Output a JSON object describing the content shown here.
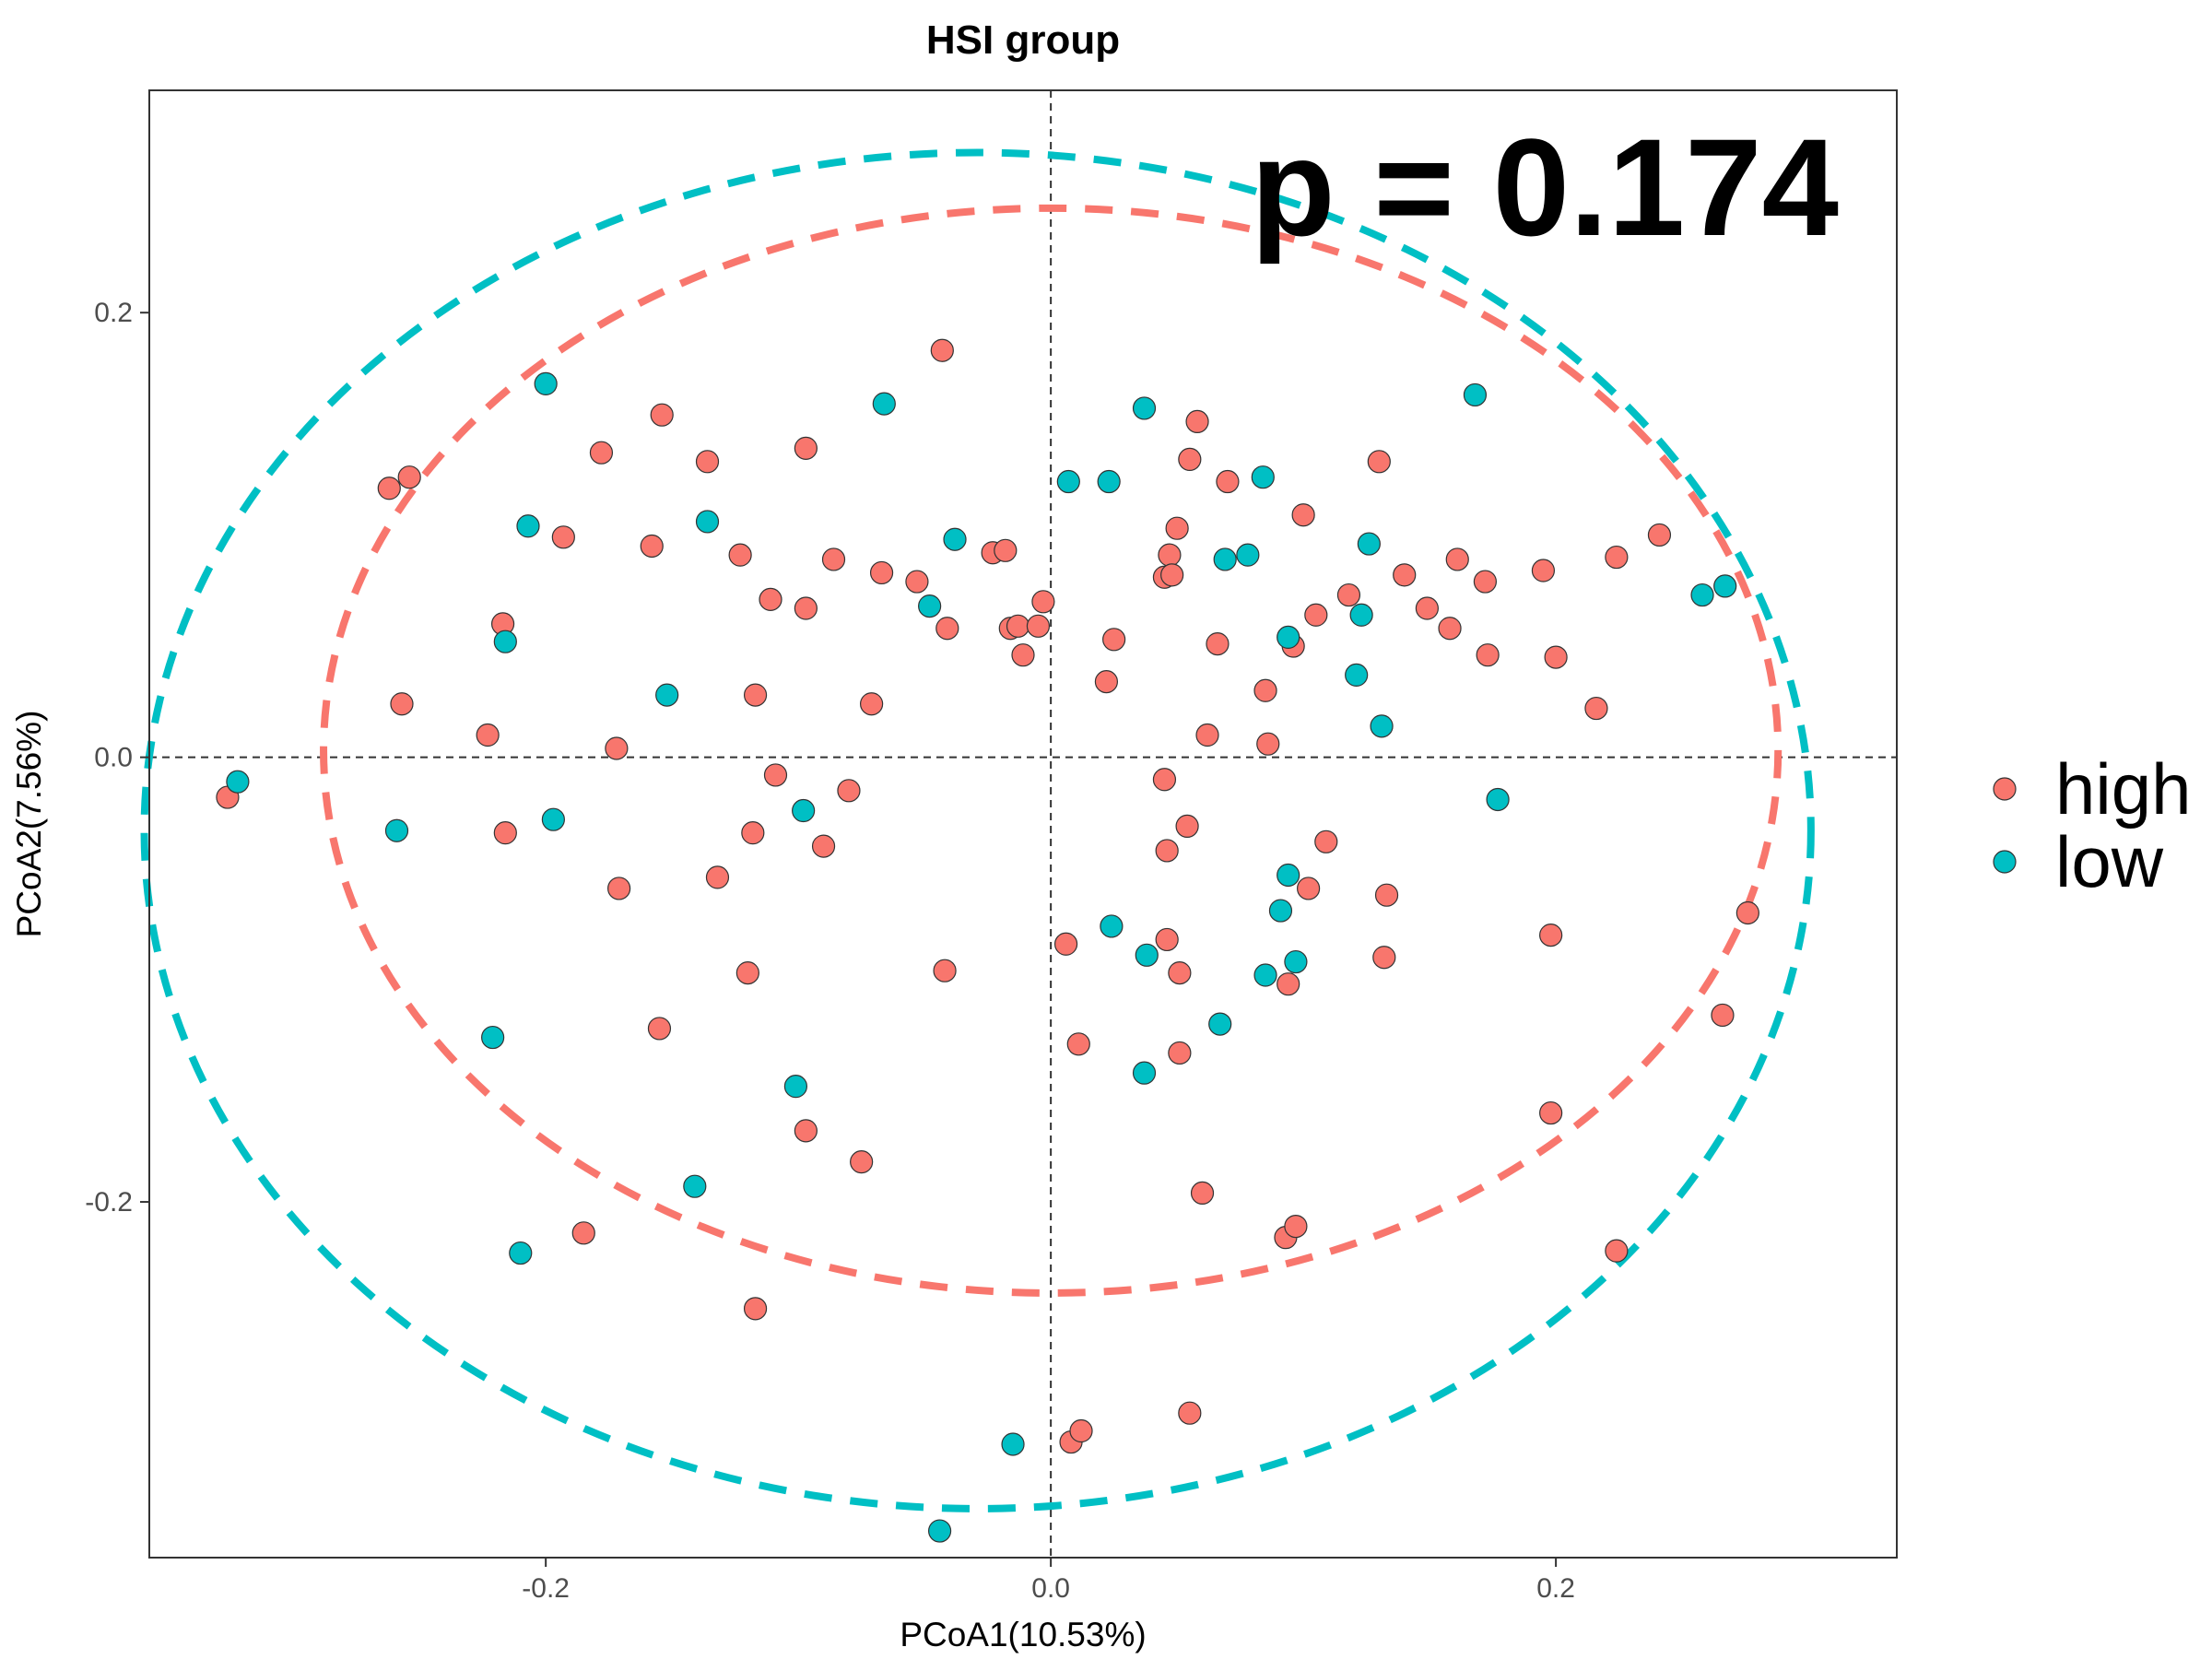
{
  "chart_data": {
    "type": "scatter",
    "title": "HSI group",
    "xlabel": "PCoA1(10.53%)",
    "ylabel": "PCoA2(7.56%)",
    "annotation": "p = 0.174",
    "xlim": [
      -0.357,
      0.335
    ],
    "ylim": [
      -0.36,
      0.3
    ],
    "xticks": [
      -0.2,
      0.0,
      0.2
    ],
    "xtick_labels": [
      "-0.2",
      "0.0",
      "0.2"
    ],
    "yticks": [
      -0.2,
      0.0,
      0.2
    ],
    "ytick_labels": [
      "-0.2",
      "0.0",
      "0.2"
    ],
    "reference_lines": {
      "x": 0,
      "y": 0
    },
    "grid": false,
    "legend_position": "right",
    "series": [
      {
        "name": "high",
        "color": "#F8766D",
        "ellipse": {
          "cx": 0.0,
          "cy": 0.003,
          "rx": 0.288,
          "ry": 0.244
        },
        "points": [
          [
            -0.326,
            -0.018
          ],
          [
            -0.262,
            0.121
          ],
          [
            -0.254,
            0.126
          ],
          [
            -0.257,
            0.024
          ],
          [
            -0.223,
            0.01
          ],
          [
            -0.217,
            0.06
          ],
          [
            -0.216,
            -0.034
          ],
          [
            -0.193,
            0.099
          ],
          [
            -0.178,
            0.137
          ],
          [
            -0.172,
            0.004
          ],
          [
            -0.171,
            -0.059
          ],
          [
            -0.158,
            0.095
          ],
          [
            -0.154,
            0.154
          ],
          [
            -0.155,
            -0.122
          ],
          [
            -0.136,
            0.133
          ],
          [
            -0.132,
            -0.054
          ],
          [
            -0.123,
            0.091
          ],
          [
            -0.12,
            -0.097
          ],
          [
            -0.118,
            -0.034
          ],
          [
            -0.117,
            0.028
          ],
          [
            -0.111,
            0.071
          ],
          [
            -0.109,
            -0.008
          ],
          [
            -0.097,
            0.139
          ],
          [
            -0.097,
            0.067
          ],
          [
            -0.097,
            -0.168
          ],
          [
            -0.09,
            -0.04
          ],
          [
            -0.086,
            0.089
          ],
          [
            -0.08,
            -0.015
          ],
          [
            -0.075,
            -0.182
          ],
          [
            -0.071,
            0.024
          ],
          [
            -0.067,
            0.083
          ],
          [
            -0.053,
            0.079
          ],
          [
            -0.043,
            0.183
          ],
          [
            -0.041,
            0.058
          ],
          [
            -0.042,
            -0.096
          ],
          [
            -0.023,
            0.092
          ],
          [
            -0.018,
            0.093
          ],
          [
            -0.016,
            0.058
          ],
          [
            -0.013,
            0.059
          ],
          [
            -0.011,
            0.046
          ],
          [
            -0.005,
            0.059
          ],
          [
            -0.003,
            0.07
          ],
          [
            0.006,
            -0.084
          ],
          [
            0.011,
            -0.129
          ],
          [
            0.022,
            0.034
          ],
          [
            0.025,
            0.053
          ],
          [
            0.046,
            -0.082
          ],
          [
            0.045,
            -0.01
          ],
          [
            0.045,
            0.081
          ],
          [
            0.047,
            0.091
          ],
          [
            0.048,
            0.082
          ],
          [
            0.046,
            -0.042
          ],
          [
            0.05,
            0.103
          ],
          [
            0.051,
            -0.133
          ],
          [
            0.055,
            0.134
          ],
          [
            0.058,
            0.151
          ],
          [
            0.06,
            -0.196
          ],
          [
            0.062,
            0.01
          ],
          [
            0.066,
            0.051
          ],
          [
            0.07,
            0.124
          ],
          [
            0.085,
            0.03
          ],
          [
            0.086,
            0.006
          ],
          [
            0.094,
            -0.102
          ],
          [
            0.096,
            0.05
          ],
          [
            0.1,
            0.109
          ],
          [
            0.102,
            -0.059
          ],
          [
            0.105,
            0.064
          ],
          [
            0.109,
            -0.038
          ],
          [
            0.118,
            0.073
          ],
          [
            0.13,
            0.133
          ],
          [
            0.132,
            -0.09
          ],
          [
            0.133,
            -0.062
          ],
          [
            0.14,
            0.082
          ],
          [
            0.149,
            0.067
          ],
          [
            0.158,
            0.058
          ],
          [
            0.161,
            0.089
          ],
          [
            0.172,
            0.079
          ],
          [
            0.173,
            0.046
          ],
          [
            0.195,
            0.084
          ],
          [
            0.198,
            -0.08
          ],
          [
            0.2,
            0.045
          ],
          [
            0.198,
            -0.16
          ],
          [
            0.216,
            0.022
          ],
          [
            0.224,
            0.09
          ],
          [
            0.224,
            -0.222
          ],
          [
            0.241,
            0.1
          ],
          [
            0.266,
            -0.116
          ],
          [
            0.276,
            -0.07
          ],
          [
            0.008,
            -0.308
          ],
          [
            0.012,
            -0.303
          ],
          [
            0.055,
            -0.295
          ],
          [
            0.051,
            -0.097
          ],
          [
            0.093,
            -0.216
          ],
          [
            0.097,
            -0.211
          ],
          [
            -0.117,
            -0.248
          ],
          [
            -0.185,
            -0.214
          ],
          [
            0.054,
            -0.031
          ]
        ]
      },
      {
        "name": "low",
        "color": "#00BFC4",
        "ellipse": {
          "cx": -0.029,
          "cy": -0.033,
          "rx": 0.33,
          "ry": 0.305
        },
        "points": [
          [
            -0.322,
            -0.011
          ],
          [
            -0.259,
            -0.033
          ],
          [
            -0.216,
            0.052
          ],
          [
            -0.207,
            0.104
          ],
          [
            -0.2,
            0.168
          ],
          [
            -0.197,
            -0.028
          ],
          [
            -0.221,
            -0.126
          ],
          [
            -0.21,
            -0.223
          ],
          [
            -0.152,
            0.028
          ],
          [
            -0.136,
            0.106
          ],
          [
            -0.141,
            -0.193
          ],
          [
            -0.101,
            -0.148
          ],
          [
            -0.098,
            -0.024
          ],
          [
            -0.066,
            0.159
          ],
          [
            -0.048,
            0.068
          ],
          [
            -0.038,
            0.098
          ],
          [
            -0.044,
            -0.348
          ],
          [
            -0.015,
            -0.309
          ],
          [
            0.007,
            0.124
          ],
          [
            0.023,
            0.124
          ],
          [
            0.024,
            -0.076
          ],
          [
            0.037,
            0.157
          ],
          [
            0.038,
            -0.089
          ],
          [
            0.037,
            -0.142
          ],
          [
            0.069,
            0.089
          ],
          [
            0.078,
            0.091
          ],
          [
            0.084,
            0.126
          ],
          [
            0.085,
            -0.098
          ],
          [
            0.067,
            -0.12
          ],
          [
            0.094,
            0.054
          ],
          [
            0.091,
            -0.069
          ],
          [
            0.094,
            -0.053
          ],
          [
            0.097,
            -0.092
          ],
          [
            0.121,
            0.037
          ],
          [
            0.123,
            0.064
          ],
          [
            0.126,
            0.096
          ],
          [
            0.131,
            0.014
          ],
          [
            0.168,
            0.163
          ],
          [
            0.177,
            -0.019
          ],
          [
            0.258,
            0.073
          ],
          [
            0.267,
            0.077
          ]
        ]
      }
    ]
  }
}
